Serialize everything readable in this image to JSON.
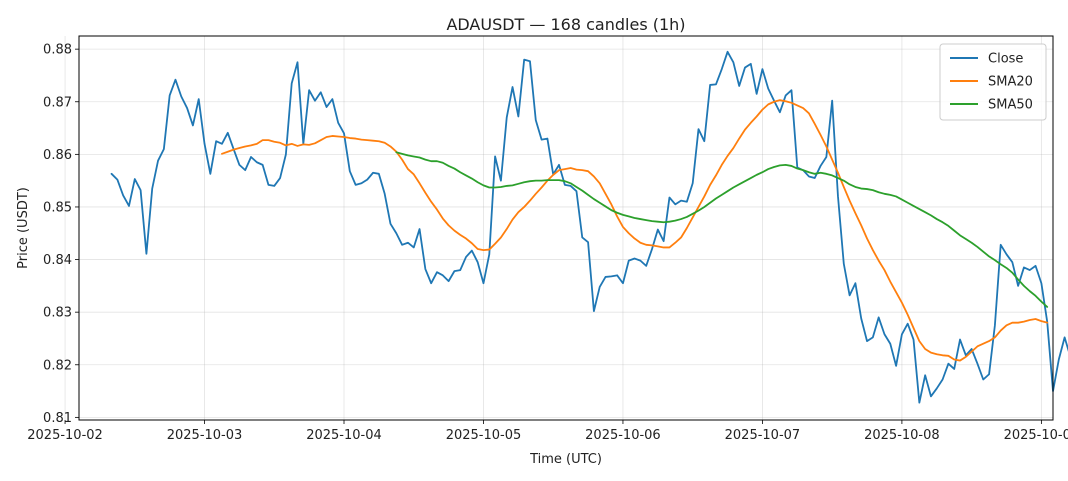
{
  "chart_data": {
    "type": "line",
    "title": "ADAUSDT — 168 candles (1h)",
    "xlabel": "Time (UTC)",
    "ylabel": "Price (USDT)",
    "ylim": [
      0.8095,
      0.8825
    ],
    "xlim_hours": [
      -5.6,
      162
    ],
    "x_ticks": [
      "2025-10-02",
      "2025-10-03",
      "2025-10-04",
      "2025-10-05",
      "2025-10-06",
      "2025-10-07",
      "2025-10-08",
      "2025-10-09"
    ],
    "y_ticks": [
      "0.81",
      "0.82",
      "0.83",
      "0.84",
      "0.85",
      "0.86",
      "0.87",
      "0.88"
    ],
    "grid": true,
    "legend": {
      "position": "top-right",
      "entries": [
        "Close",
        "SMA20",
        "SMA50"
      ]
    },
    "start_time": "2025-10-02T08:00Z",
    "interval": "1h",
    "series": [
      {
        "name": "Close",
        "color": "#1f77b4",
        "values": [
          0.8563,
          0.8552,
          0.8522,
          0.8502,
          0.8553,
          0.8532,
          0.8411,
          0.8535,
          0.8588,
          0.861,
          0.8712,
          0.8742,
          0.871,
          0.8688,
          0.8655,
          0.8705,
          0.862,
          0.8563,
          0.8625,
          0.862,
          0.8641,
          0.861,
          0.858,
          0.857,
          0.8595,
          0.8585,
          0.858,
          0.8542,
          0.854,
          0.8555,
          0.86,
          0.8735,
          0.8775,
          0.862,
          0.8722,
          0.8702,
          0.8718,
          0.869,
          0.8705,
          0.866,
          0.864,
          0.8568,
          0.8542,
          0.8545,
          0.8552,
          0.8565,
          0.8563,
          0.8525,
          0.8468,
          0.845,
          0.8428,
          0.8432,
          0.8423,
          0.8458,
          0.8382,
          0.8355,
          0.8376,
          0.837,
          0.8359,
          0.8378,
          0.838,
          0.8405,
          0.8417,
          0.8395,
          0.8355,
          0.841,
          0.8596,
          0.855,
          0.867,
          0.8728,
          0.8672,
          0.878,
          0.8777,
          0.8665,
          0.8628,
          0.863,
          0.8562,
          0.858,
          0.8542,
          0.854,
          0.853,
          0.8442,
          0.8433,
          0.8302,
          0.8348,
          0.8367,
          0.8368,
          0.837,
          0.8355,
          0.8398,
          0.8402,
          0.8398,
          0.8388,
          0.842,
          0.8457,
          0.8435,
          0.8518,
          0.8505,
          0.8512,
          0.851,
          0.8545,
          0.8648,
          0.8625,
          0.8732,
          0.8733,
          0.8762,
          0.8795,
          0.8775,
          0.873,
          0.8765,
          0.8772,
          0.8715,
          0.8762,
          0.8725,
          0.8702,
          0.868,
          0.8712,
          0.8722,
          0.8575,
          0.857,
          0.8558,
          0.8555,
          0.8578,
          0.8595,
          0.8702,
          0.852,
          0.8392,
          0.8332,
          0.8355,
          0.8288,
          0.8245,
          0.8252,
          0.829,
          0.8258,
          0.824,
          0.8198,
          0.8258,
          0.8278,
          0.8248,
          0.8128,
          0.818,
          0.814,
          0.8155,
          0.8172,
          0.8202,
          0.8192,
          0.8248,
          0.8218,
          0.823,
          0.8202,
          0.8172,
          0.8182,
          0.8275,
          0.8428,
          0.841,
          0.8395,
          0.835,
          0.8385,
          0.838,
          0.8388,
          0.8355,
          0.8282,
          0.815,
          0.821,
          0.8252,
          0.8215,
          0.8172,
          0.8178
        ]
      },
      {
        "name": "SMA20",
        "color": "#ff7f0e",
        "values": [
          null,
          null,
          null,
          null,
          null,
          null,
          null,
          null,
          null,
          null,
          null,
          null,
          null,
          null,
          null,
          null,
          null,
          null,
          null,
          0.8601,
          0.8605,
          0.8609,
          0.8612,
          0.8615,
          0.8617,
          0.862,
          0.8627,
          0.8627,
          0.8624,
          0.8622,
          0.8617,
          0.862,
          0.8616,
          0.8619,
          0.8618,
          0.8621,
          0.8627,
          0.8633,
          0.8635,
          0.8634,
          0.8633,
          0.8631,
          0.863,
          0.8628,
          0.8627,
          0.8626,
          0.8625,
          0.8622,
          0.8615,
          0.8605,
          0.859,
          0.8572,
          0.8562,
          0.8545,
          0.8527,
          0.851,
          0.8495,
          0.8478,
          0.8465,
          0.8455,
          0.8447,
          0.844,
          0.8431,
          0.842,
          0.8418,
          0.8419,
          0.843,
          0.8442,
          0.8458,
          0.8476,
          0.849,
          0.85,
          0.8512,
          0.8525,
          0.8537,
          0.855,
          0.8561,
          0.857,
          0.8572,
          0.8574,
          0.8571,
          0.857,
          0.8568,
          0.8558,
          0.8545,
          0.8525,
          0.8505,
          0.8482,
          0.8462,
          0.845,
          0.844,
          0.8432,
          0.8428,
          0.8427,
          0.8425,
          0.8423,
          0.8423,
          0.8432,
          0.8442,
          0.846,
          0.848,
          0.85,
          0.852,
          0.8542,
          0.856,
          0.858,
          0.8597,
          0.8612,
          0.863,
          0.8647,
          0.866,
          0.8672,
          0.8685,
          0.8695,
          0.87,
          0.8703,
          0.8701,
          0.8698,
          0.8693,
          0.8688,
          0.8678,
          0.8658,
          0.8637,
          0.8615,
          0.859,
          0.8565,
          0.8538,
          0.8512,
          0.8488,
          0.8465,
          0.844,
          0.8418,
          0.8398,
          0.838,
          0.8358,
          0.8338,
          0.8318,
          0.8295,
          0.827,
          0.8245,
          0.823,
          0.8223,
          0.822,
          0.8218,
          0.8217,
          0.821,
          0.8208,
          0.8215,
          0.8225,
          0.8235,
          0.824,
          0.8245,
          0.8252,
          0.8265,
          0.8275,
          0.828,
          0.828,
          0.8282,
          0.8285,
          0.8287,
          0.8283,
          0.828
        ]
      },
      {
        "name": "SMA50",
        "color": "#2ca02c",
        "values": [
          null,
          null,
          null,
          null,
          null,
          null,
          null,
          null,
          null,
          null,
          null,
          null,
          null,
          null,
          null,
          null,
          null,
          null,
          null,
          null,
          null,
          null,
          null,
          null,
          null,
          null,
          null,
          null,
          null,
          null,
          null,
          null,
          null,
          null,
          null,
          null,
          null,
          null,
          null,
          null,
          null,
          null,
          null,
          null,
          null,
          null,
          null,
          null,
          null,
          0.8604,
          0.8601,
          0.8598,
          0.8596,
          0.8594,
          0.859,
          0.8587,
          0.8587,
          0.8584,
          0.8578,
          0.8573,
          0.8566,
          0.856,
          0.8554,
          0.8547,
          0.8541,
          0.8537,
          0.8537,
          0.8538,
          0.854,
          0.8541,
          0.8544,
          0.8547,
          0.8549,
          0.855,
          0.855,
          0.8551,
          0.8551,
          0.8551,
          0.8549,
          0.8545,
          0.8538,
          0.8531,
          0.8523,
          0.8515,
          0.8508,
          0.8501,
          0.8494,
          0.8489,
          0.8485,
          0.8482,
          0.8479,
          0.8477,
          0.8475,
          0.8473,
          0.8472,
          0.8471,
          0.8472,
          0.8474,
          0.8477,
          0.8481,
          0.8487,
          0.8493,
          0.85,
          0.8508,
          0.8516,
          0.8523,
          0.853,
          0.8537,
          0.8543,
          0.8549,
          0.8555,
          0.8561,
          0.8566,
          0.8572,
          0.8576,
          0.8579,
          0.858,
          0.8578,
          0.8573,
          0.857,
          0.8566,
          0.8563,
          0.8565,
          0.8563,
          0.856,
          0.8555,
          0.855,
          0.8543,
          0.8538,
          0.8535,
          0.8534,
          0.8532,
          0.8528,
          0.8525,
          0.8523,
          0.852,
          0.8514,
          0.8508,
          0.8502,
          0.8496,
          0.849,
          0.8484,
          0.8477,
          0.8471,
          0.8464,
          0.8455,
          0.8446,
          0.8439,
          0.8432,
          0.8424,
          0.8415,
          0.8406,
          0.8399,
          0.8391,
          0.8384,
          0.8375,
          0.8362,
          0.835,
          0.834,
          0.8331,
          0.832,
          0.831
        ]
      }
    ]
  }
}
